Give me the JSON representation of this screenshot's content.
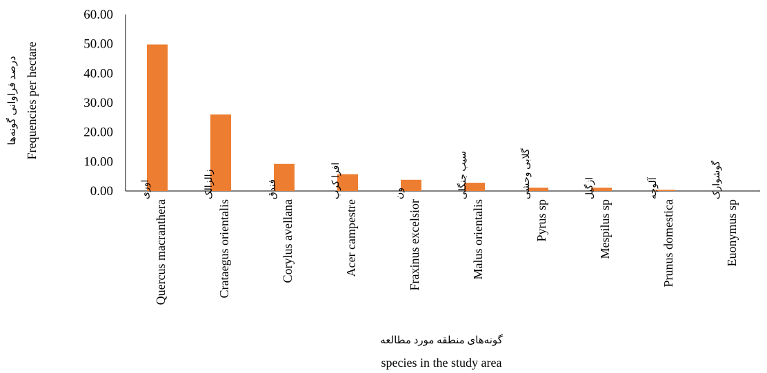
{
  "chart_data": {
    "type": "bar",
    "categories": [
      {
        "latin": "Quercus macranthera",
        "local": "اوری"
      },
      {
        "latin": "Crataegus orientalis",
        "local": "زالزالک"
      },
      {
        "latin": "Corylus avellana",
        "local": "فندق"
      },
      {
        "latin": "Acer campestre",
        "local": "افرا کرب"
      },
      {
        "latin": "Fraxinus excelsior",
        "local": "ون"
      },
      {
        "latin": "Malus orientalis",
        "local": "سیب جنگلی"
      },
      {
        "latin": "Pyrus sp",
        "local": "گلابی وحشی"
      },
      {
        "latin": "Mespilus sp",
        "local": "ازگیل"
      },
      {
        "latin": "Prunus domestica",
        "local": "آلوچه"
      },
      {
        "latin": "Euonymus sp",
        "local": "گوشوارک"
      }
    ],
    "values": [
      49.8,
      26.0,
      9.2,
      5.7,
      3.8,
      2.8,
      1.1,
      1.1,
      0.4,
      0.0
    ],
    "ylim": [
      0,
      60
    ],
    "yticks": [
      "0.00",
      "10.00",
      "20.00",
      "30.00",
      "40.00",
      "50.00",
      "60.00"
    ],
    "xlabel": {
      "fa": "گونه‌های منطقه مورد مطالعه",
      "en": "species in the study area"
    },
    "ylabel": {
      "fa": "درصد فراوانی گونه‌ها",
      "en": "Frequencies per hectare"
    },
    "bar_color": "#ED7D31",
    "grid": false,
    "legend": false
  }
}
